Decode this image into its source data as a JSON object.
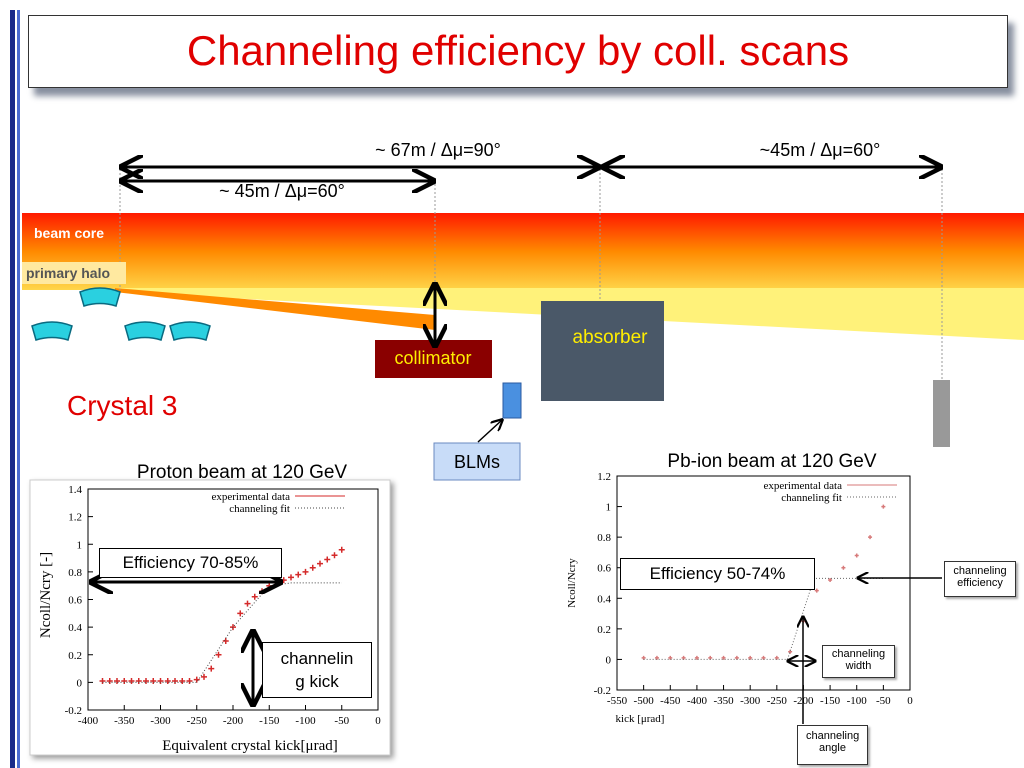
{
  "title": "Channeling efficiency by coll. scans",
  "diagram": {
    "distances": [
      "~ 67m / Δμ=90°",
      "~45m / Δμ=60°",
      "~ 45m / Δμ=60°"
    ],
    "beam_core": "beam core",
    "primary_halo": "primary halo",
    "absorber": "absorber",
    "collimator": "collimator",
    "blms": "BLMs",
    "crystal": "Crystal 3"
  },
  "chart_data": [
    {
      "type": "scatter",
      "title": "Proton beam at 120 GeV",
      "x_label": "Equivalent crystal kick[μrad]",
      "y_label": "Ncoll/Ncry [-]",
      "xlim": [
        -400,
        0
      ],
      "ylim": [
        -0.2,
        1.4
      ],
      "xticks": [
        -400,
        -350,
        -300,
        -250,
        -200,
        -150,
        -100,
        -50,
        0
      ],
      "yticks": [
        -0.2,
        0,
        0.2,
        0.4,
        0.6,
        0.8,
        1,
        1.2,
        1.4
      ],
      "series": [
        {
          "name": "experimental data",
          "color": "#d42a2a",
          "x": [
            -380,
            -370,
            -360,
            -350,
            -340,
            -330,
            -320,
            -310,
            -300,
            -290,
            -280,
            -270,
            -260,
            -250,
            -240,
            -230,
            -220,
            -210,
            -200,
            -190,
            -180,
            -170,
            -160,
            -150,
            -140,
            -130,
            -120,
            -110,
            -100,
            -90,
            -80,
            -70,
            -60,
            -50
          ],
          "values": [
            0.01,
            0.01,
            0.01,
            0.01,
            0.01,
            0.01,
            0.01,
            0.01,
            0.01,
            0.01,
            0.01,
            0.01,
            0.01,
            0.02,
            0.04,
            0.1,
            0.2,
            0.3,
            0.4,
            0.5,
            0.57,
            0.62,
            0.66,
            0.7,
            0.72,
            0.74,
            0.76,
            0.78,
            0.8,
            0.83,
            0.86,
            0.89,
            0.92,
            0.96
          ]
        },
        {
          "name": "channeling fit",
          "color": "#444444",
          "x": [
            -380,
            -250,
            -200,
            -150,
            -120,
            -50
          ],
          "values": [
            0,
            0,
            0.4,
            0.7,
            0.72,
            0.72
          ]
        }
      ],
      "annotations": [
        "Efficiency 70-85%",
        "channeling kick"
      ]
    },
    {
      "type": "scatter",
      "title": "Pb-ion beam at 120 GeV",
      "x_label": "kick [μrad]",
      "y_label": "Ncoll/Ncry",
      "xlim": [
        -550,
        0
      ],
      "ylim": [
        -0.2,
        1.2
      ],
      "xticks": [
        -550,
        -500,
        -450,
        -400,
        -350,
        -300,
        -250,
        -200,
        -150,
        -100,
        -50,
        0
      ],
      "yticks": [
        -0.2,
        0,
        0.2,
        0.4,
        0.6,
        0.8,
        1,
        1.2
      ],
      "series": [
        {
          "name": "experimental data",
          "color": "#d77a7a",
          "x": [
            -500,
            -475,
            -450,
            -425,
            -400,
            -375,
            -350,
            -325,
            -300,
            -275,
            -250,
            -225,
            -200,
            -175,
            -150,
            -125,
            -100,
            -75,
            -50
          ],
          "values": [
            0.01,
            0.01,
            0.01,
            0.01,
            0.01,
            0.01,
            0.01,
            0.01,
            0.01,
            0.01,
            0.01,
            0.05,
            0.25,
            0.45,
            0.52,
            0.6,
            0.68,
            0.8,
            1
          ]
        },
        {
          "name": "channeling fit",
          "color": "#666666",
          "x": [
            -500,
            -230,
            -180,
            -50
          ],
          "values": [
            0,
            0,
            0.53,
            0.53
          ]
        }
      ],
      "annotations": [
        "Efficiency 50-74%",
        "channeling efficiency",
        "channeling width",
        "channeling angle"
      ]
    }
  ]
}
